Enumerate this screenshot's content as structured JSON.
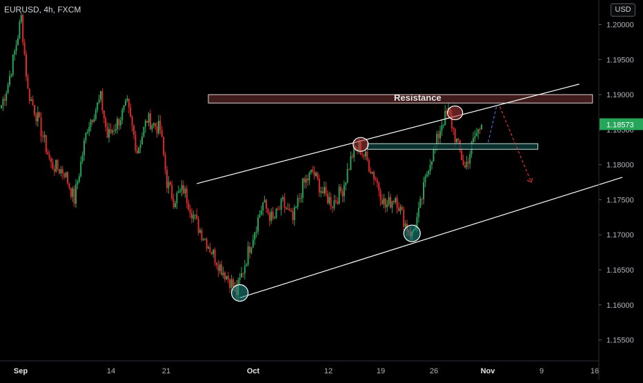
{
  "header": {
    "symbol": "EURUSD, 4h, FXCM"
  },
  "price_scale": {
    "currency": "USD",
    "last_price": "1.18573",
    "last_price_color": "#26a65b"
  },
  "colors": {
    "up": "#26a65b",
    "down": "#e02a2a",
    "background": "#000000",
    "axis_text": "#b2b5be",
    "resistance_fill": "#5a2626",
    "support_fill": "#0e3b38"
  },
  "annotations": {
    "resistance_label": "Resistance"
  },
  "chart_data": {
    "type": "candlestick",
    "title": "",
    "xlabel": "",
    "ylabel": "",
    "ylim": [
      1.152,
      1.2035
    ],
    "x_ticks": [
      "Sep",
      "14",
      "21",
      "Oct",
      "12",
      "19",
      "26",
      "Nov",
      "9",
      "16"
    ],
    "y_ticks": [
      "1.20000",
      "1.19500",
      "1.19000",
      "1.18500",
      "1.18000",
      "1.17500",
      "1.17000",
      "1.16500",
      "1.16000",
      "1.15500"
    ],
    "grid": false,
    "series": [
      {
        "close_anchors": [
          {
            "x": 0,
            "close": 1.1885
          },
          {
            "x": 4,
            "close": 1.1915
          },
          {
            "x": 8,
            "close": 1.196
          },
          {
            "x": 12,
            "close": 1.201
          },
          {
            "x": 16,
            "close": 1.1905
          },
          {
            "x": 22,
            "close": 1.1865
          },
          {
            "x": 30,
            "close": 1.18
          },
          {
            "x": 38,
            "close": 1.179
          },
          {
            "x": 44,
            "close": 1.175
          },
          {
            "x": 52,
            "close": 1.1855
          },
          {
            "x": 60,
            "close": 1.1895
          },
          {
            "x": 64,
            "close": 1.184
          },
          {
            "x": 70,
            "close": 1.186
          },
          {
            "x": 76,
            "close": 1.1885
          },
          {
            "x": 82,
            "close": 1.182
          },
          {
            "x": 88,
            "close": 1.1865
          },
          {
            "x": 96,
            "close": 1.185
          },
          {
            "x": 100,
            "close": 1.1775
          },
          {
            "x": 104,
            "close": 1.175
          },
          {
            "x": 110,
            "close": 1.1765
          },
          {
            "x": 118,
            "close": 1.1715
          },
          {
            "x": 124,
            "close": 1.169
          },
          {
            "x": 132,
            "close": 1.1655
          },
          {
            "x": 138,
            "close": 1.1635
          },
          {
            "x": 142,
            "close": 1.1618
          },
          {
            "x": 146,
            "close": 1.165
          },
          {
            "x": 152,
            "close": 1.17
          },
          {
            "x": 158,
            "close": 1.1745
          },
          {
            "x": 164,
            "close": 1.172
          },
          {
            "x": 170,
            "close": 1.1745
          },
          {
            "x": 176,
            "close": 1.172
          },
          {
            "x": 182,
            "close": 1.177
          },
          {
            "x": 188,
            "close": 1.179
          },
          {
            "x": 194,
            "close": 1.176
          },
          {
            "x": 200,
            "close": 1.1745
          },
          {
            "x": 206,
            "close": 1.1765
          },
          {
            "x": 212,
            "close": 1.1815
          },
          {
            "x": 216,
            "close": 1.1825
          },
          {
            "x": 220,
            "close": 1.181
          },
          {
            "x": 226,
            "close": 1.178
          },
          {
            "x": 232,
            "close": 1.174
          },
          {
            "x": 238,
            "close": 1.1755
          },
          {
            "x": 244,
            "close": 1.1715
          },
          {
            "x": 248,
            "close": 1.17
          },
          {
            "x": 252,
            "close": 1.173
          },
          {
            "x": 258,
            "close": 1.18
          },
          {
            "x": 262,
            "close": 1.1825
          },
          {
            "x": 266,
            "close": 1.186
          },
          {
            "x": 270,
            "close": 1.1875
          },
          {
            "x": 274,
            "close": 1.184
          },
          {
            "x": 280,
            "close": 1.1795
          },
          {
            "x": 286,
            "close": 1.184
          },
          {
            "x": 290,
            "close": 1.1857
          }
        ]
      }
    ],
    "shapes": {
      "resistance_zone": {
        "x": [
          125,
          357
        ],
        "y": [
          1.1888,
          1.19
        ]
      },
      "support_zone": {
        "x": [
          221,
          324
        ],
        "y": [
          1.1822,
          1.183
        ]
      },
      "channel_upper": {
        "from": [
          118,
          1.1773
        ],
        "to": [
          349,
          1.1915
        ]
      },
      "channel_lower": {
        "from": [
          144,
          1.161
        ],
        "to": [
          375,
          1.1782
        ]
      },
      "circles": [
        {
          "x": 144,
          "y": 1.1617,
          "kind": "low"
        },
        {
          "x": 248,
          "y": 1.1702,
          "kind": "low"
        },
        {
          "x": 217,
          "y": 1.1829,
          "kind": "high"
        },
        {
          "x": 274,
          "y": 1.1874,
          "kind": "high"
        }
      ],
      "projection_up": {
        "from": [
          294,
          1.1832
        ],
        "to": [
          299,
          1.1883
        ]
      },
      "projection_down": {
        "from": [
          301,
          1.1883
        ],
        "to": [
          320,
          1.1775
        ]
      }
    }
  }
}
